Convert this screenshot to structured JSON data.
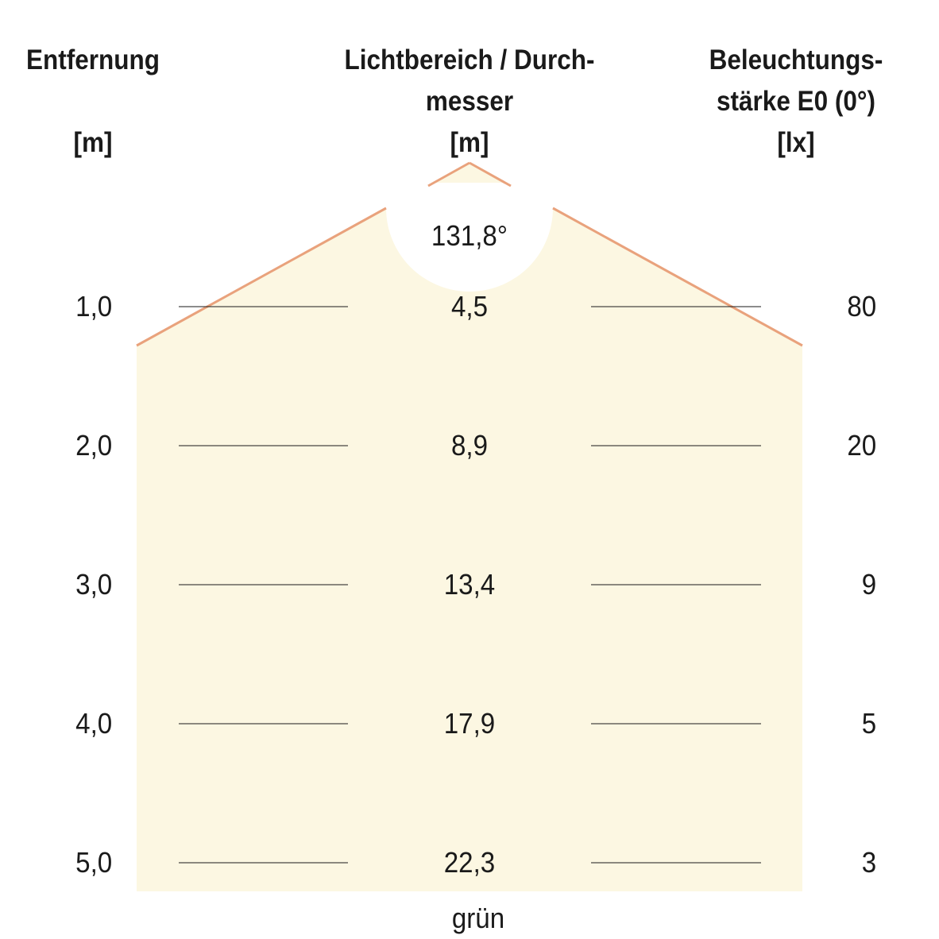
{
  "headers": {
    "distance": {
      "line1": "Entfernung",
      "line2": "",
      "unit": "[m]"
    },
    "diameter": {
      "line1": "Lichtbereich / Durch-",
      "line2": "messer",
      "unit": "[m]"
    },
    "illuminance": {
      "line1": "Beleuchtungs-",
      "line2": "stärke E0 (0°)",
      "unit": "[lx]"
    }
  },
  "beam_angle": "131,8°",
  "rows": [
    {
      "distance": "1,0",
      "diameter": "4,5",
      "illuminance": "80"
    },
    {
      "distance": "2,0",
      "diameter": "8,9",
      "illuminance": "20"
    },
    {
      "distance": "3,0",
      "diameter": "13,4",
      "illuminance": "9"
    },
    {
      "distance": "4,0",
      "diameter": "17,9",
      "illuminance": "5"
    },
    {
      "distance": "5,0",
      "diameter": "22,3",
      "illuminance": "3"
    }
  ],
  "color_label": "grün",
  "colors": {
    "light_fill": "#fcf7e2",
    "beam_edge": "#e9a27c",
    "text": "#1a1a1a",
    "rule": "#1a1a1a"
  }
}
